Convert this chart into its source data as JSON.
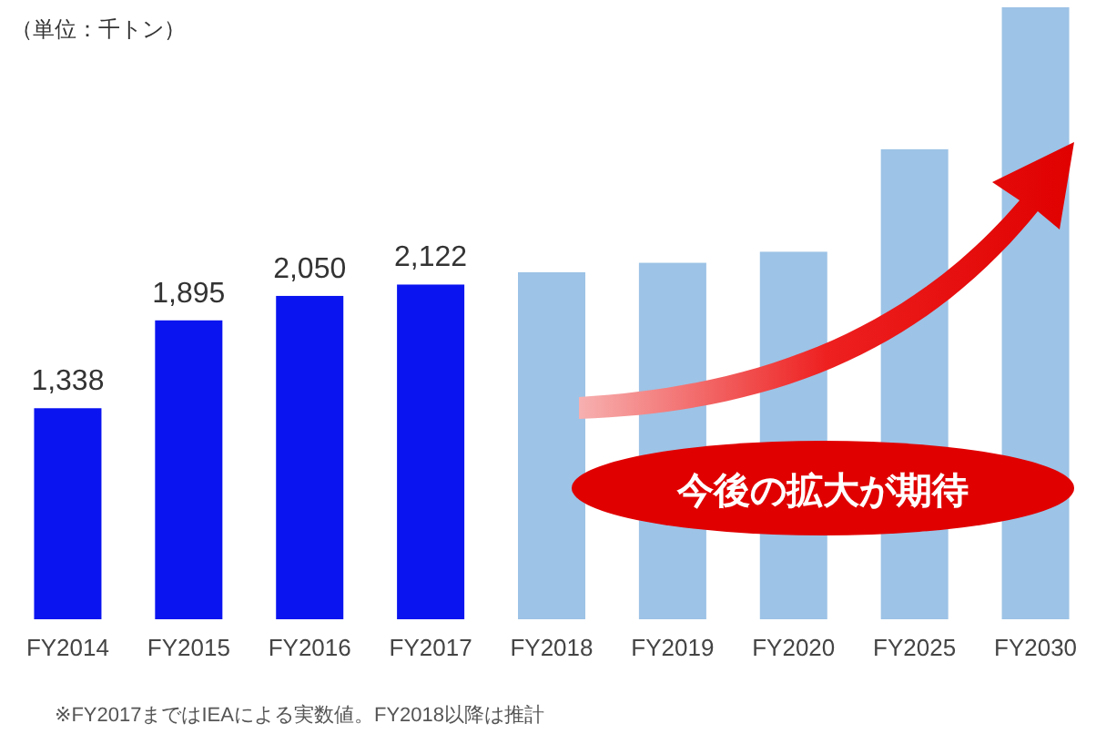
{
  "chart_data": {
    "type": "bar",
    "ylabel": "（単位：千トン）",
    "categories": [
      "FY2014",
      "FY2015",
      "FY2016",
      "FY2017",
      "FY2018",
      "FY2019",
      "FY2020",
      "FY2025",
      "FY2030"
    ],
    "values": [
      1338,
      1895,
      2050,
      2122,
      2200,
      2260,
      2330,
      2980,
      3880
    ],
    "value_labels": [
      "1,338",
      "1,895",
      "2,050",
      "2,122",
      null,
      null,
      null,
      null,
      null
    ],
    "colors": [
      "#0a14f0",
      "#0a14f0",
      "#0a14f0",
      "#0a14f0",
      "#9dc3e6",
      "#9dc3e6",
      "#9dc3e6",
      "#9dc3e6",
      "#9dc3e6"
    ],
    "annotations": [
      "今後の拡大が期待",
      "※FY2017まではIEAによる実数値。FY2018以降は推計"
    ]
  }
}
